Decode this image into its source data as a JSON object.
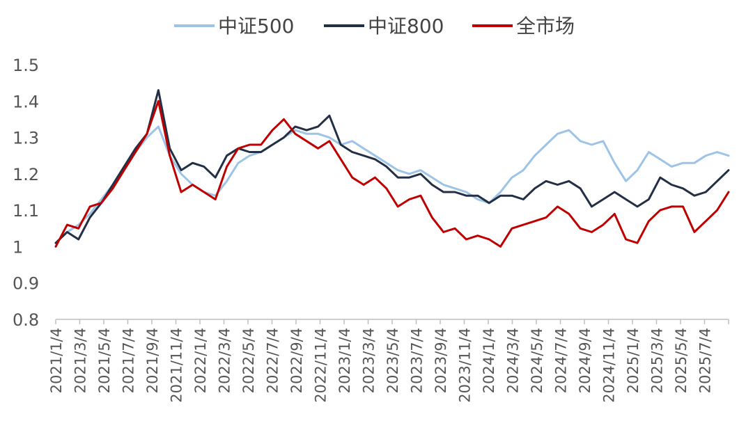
{
  "chart_data": {
    "type": "line",
    "title": "",
    "xlabel": "",
    "ylabel": "",
    "ylim": [
      0.8,
      1.5
    ],
    "y_ticks": [
      "1.5",
      "1.4",
      "1.3",
      "1.2",
      "1.1",
      "1",
      "0.9",
      "0.8"
    ],
    "x_ticks": [
      "2021/1/4",
      "2021/3/4",
      "2021/5/4",
      "2021/7/4",
      "2021/9/4",
      "2021/11/4",
      "2022/1/4",
      "2022/3/4",
      "2022/5/4",
      "2022/7/4",
      "2022/9/4",
      "2022/11/4",
      "2023/1/4",
      "2023/3/4",
      "2023/5/4",
      "2023/7/4",
      "2023/9/4",
      "2023/11/4",
      "2024/1/4",
      "2024/3/4",
      "2024/5/4",
      "2024/7/4",
      "2024/9/4",
      "2024/11/4",
      "2025/1/4",
      "2025/3/4",
      "2025/5/4",
      "2025/7/4"
    ],
    "grid": false,
    "legend": "top-center",
    "series": [
      {
        "name": "中证500",
        "color": "#9dc3e6",
        "values": [
          1.01,
          1.04,
          1.06,
          1.09,
          1.13,
          1.17,
          1.22,
          1.26,
          1.3,
          1.33,
          1.25,
          1.2,
          1.17,
          1.15,
          1.14,
          1.18,
          1.23,
          1.25,
          1.26,
          1.28,
          1.3,
          1.32,
          1.31,
          1.31,
          1.3,
          1.28,
          1.29,
          1.27,
          1.25,
          1.23,
          1.21,
          1.2,
          1.21,
          1.19,
          1.17,
          1.16,
          1.15,
          1.13,
          1.12,
          1.15,
          1.19,
          1.21,
          1.25,
          1.28,
          1.31,
          1.32,
          1.29,
          1.28,
          1.29,
          1.23,
          1.18,
          1.21,
          1.26,
          1.24,
          1.22,
          1.23,
          1.23,
          1.25,
          1.26,
          1.25
        ]
      },
      {
        "name": "中证800",
        "color": "#222f45",
        "values": [
          1.01,
          1.04,
          1.02,
          1.08,
          1.12,
          1.17,
          1.22,
          1.27,
          1.31,
          1.43,
          1.27,
          1.21,
          1.23,
          1.22,
          1.19,
          1.25,
          1.27,
          1.26,
          1.26,
          1.28,
          1.3,
          1.33,
          1.32,
          1.33,
          1.36,
          1.28,
          1.26,
          1.25,
          1.24,
          1.22,
          1.19,
          1.19,
          1.2,
          1.17,
          1.15,
          1.15,
          1.14,
          1.14,
          1.12,
          1.14,
          1.14,
          1.13,
          1.16,
          1.18,
          1.17,
          1.18,
          1.16,
          1.11,
          1.13,
          1.15,
          1.13,
          1.11,
          1.13,
          1.19,
          1.17,
          1.16,
          1.14,
          1.15,
          1.18,
          1.21
        ]
      },
      {
        "name": "全市场",
        "color": "#c00000",
        "values": [
          1.0,
          1.06,
          1.05,
          1.11,
          1.12,
          1.16,
          1.21,
          1.26,
          1.31,
          1.4,
          1.25,
          1.15,
          1.17,
          1.15,
          1.13,
          1.22,
          1.27,
          1.28,
          1.28,
          1.32,
          1.35,
          1.31,
          1.29,
          1.27,
          1.29,
          1.24,
          1.19,
          1.17,
          1.19,
          1.16,
          1.11,
          1.13,
          1.14,
          1.08,
          1.04,
          1.05,
          1.02,
          1.03,
          1.02,
          1.0,
          1.05,
          1.06,
          1.07,
          1.08,
          1.11,
          1.09,
          1.05,
          1.04,
          1.06,
          1.09,
          1.02,
          1.01,
          1.07,
          1.1,
          1.11,
          1.11,
          1.04,
          1.07,
          1.1,
          1.15
        ]
      }
    ]
  }
}
